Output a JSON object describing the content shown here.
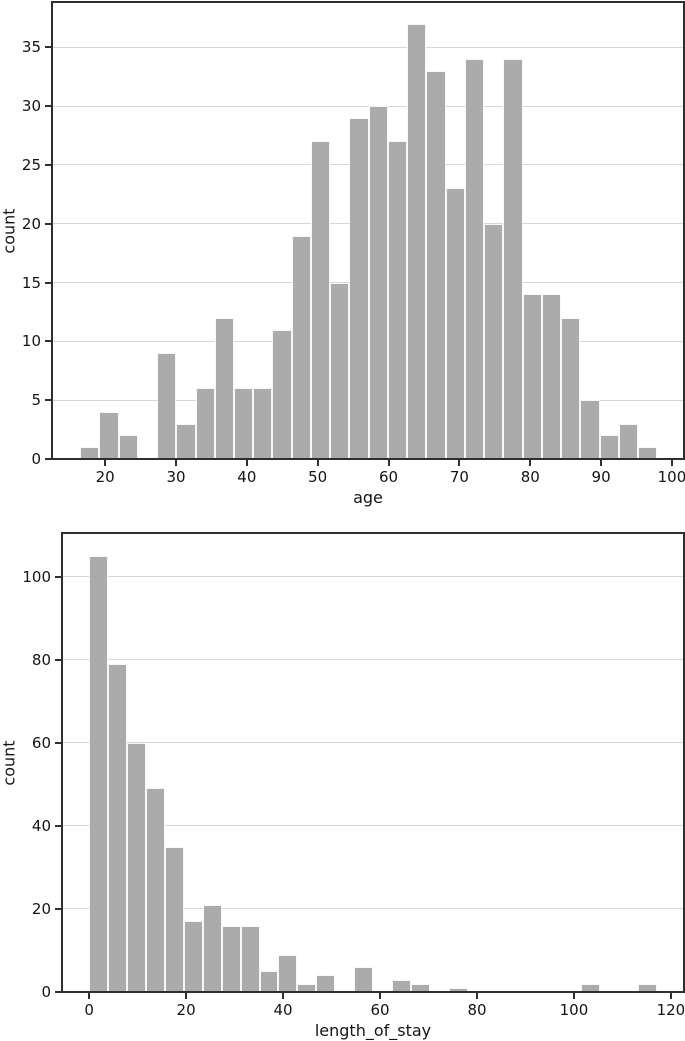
{
  "colors": {
    "background": "#ffffff",
    "bar": "#ababab",
    "bar_edge": "#f7f7f7",
    "grid": "#d6d6d6",
    "spine": "#2f2f2f",
    "text": "#141414"
  },
  "chart_data": [
    {
      "type": "bar",
      "subtype": "histogram",
      "title": "",
      "xlabel": "age",
      "ylabel": "count",
      "legend": "none",
      "grid": "horizontal",
      "bin_start": 16.47,
      "bin_width": 2.715,
      "counts": [
        1,
        4,
        2,
        0,
        9,
        3,
        6,
        12,
        6,
        6,
        11,
        19,
        27,
        15,
        29,
        30,
        27,
        37,
        33,
        23,
        34,
        20,
        34,
        14,
        14,
        12,
        5,
        2,
        3,
        1
      ],
      "xlim": [
        12.5,
        101.7
      ],
      "ylim": [
        0,
        38.85
      ],
      "xticks": [
        20,
        30,
        40,
        50,
        60,
        70,
        80,
        90,
        100
      ],
      "yticks": [
        0,
        5,
        10,
        15,
        20,
        25,
        30,
        35
      ]
    },
    {
      "type": "bar",
      "subtype": "histogram",
      "title": "",
      "xlabel": "length_of_stay",
      "ylabel": "count",
      "legend": "none",
      "grid": "horizontal",
      "bin_start": 0.05,
      "bin_width": 3.9,
      "counts": [
        105,
        79,
        60,
        49,
        35,
        17,
        21,
        16,
        16,
        5,
        9,
        2,
        4,
        0,
        6,
        0,
        3,
        2,
        0,
        1,
        0,
        0,
        0,
        0,
        0,
        0,
        2,
        0,
        0,
        2
      ],
      "xlim": [
        -5.6,
        122.7
      ],
      "ylim": [
        0,
        110.5
      ],
      "xticks": [
        0,
        20,
        40,
        60,
        80,
        100,
        120
      ],
      "yticks": [
        0,
        20,
        40,
        60,
        80,
        100
      ]
    }
  ]
}
